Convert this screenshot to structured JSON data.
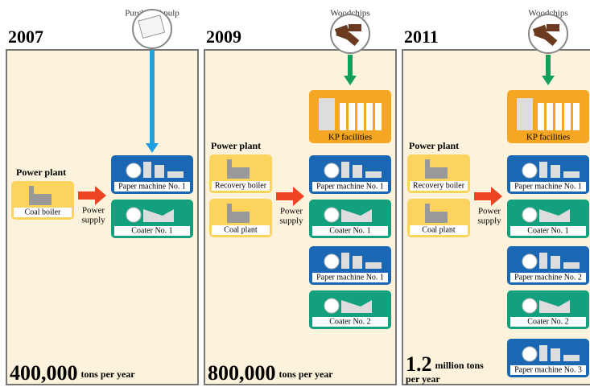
{
  "panels": [
    {
      "year": "2007",
      "input": "Purchased pulp",
      "power_plant": "Power plant",
      "boilers": [
        "Coal boiler"
      ],
      "power_supply": [
        "Power",
        "supply"
      ],
      "facilities": [
        "Paper machine No. 1",
        "Coater No. 1"
      ],
      "capacity": "400,000",
      "capacity_unit": [
        "tons per year"
      ]
    },
    {
      "year": "2009",
      "input": "Woodchips",
      "kp": "KP facilities",
      "power_plant": "Power plant",
      "boilers": [
        "Recovery boiler",
        "Coal plant"
      ],
      "power_supply": [
        "Power",
        "supply"
      ],
      "facilities": [
        "Paper machine No. 1",
        "Coater No. 1",
        "Paper machine No. 1",
        "Coater No. 2"
      ],
      "capacity": "800,000",
      "capacity_unit": [
        "tons per year"
      ]
    },
    {
      "year": "2011",
      "input": "Woodchips",
      "kp": "KP facilities",
      "power_plant": "Power plant",
      "boilers": [
        "Recovery boiler",
        "Coal plant"
      ],
      "power_supply": [
        "Power",
        "supply"
      ],
      "facilities": [
        "Paper machine No. 1",
        "Coater No. 1",
        "Paper machine No. 2",
        "Coater No. 2",
        "Paper machine No. 3"
      ],
      "capacity": "1.2",
      "capacity_unit": [
        "million tons",
        "per year"
      ]
    }
  ]
}
